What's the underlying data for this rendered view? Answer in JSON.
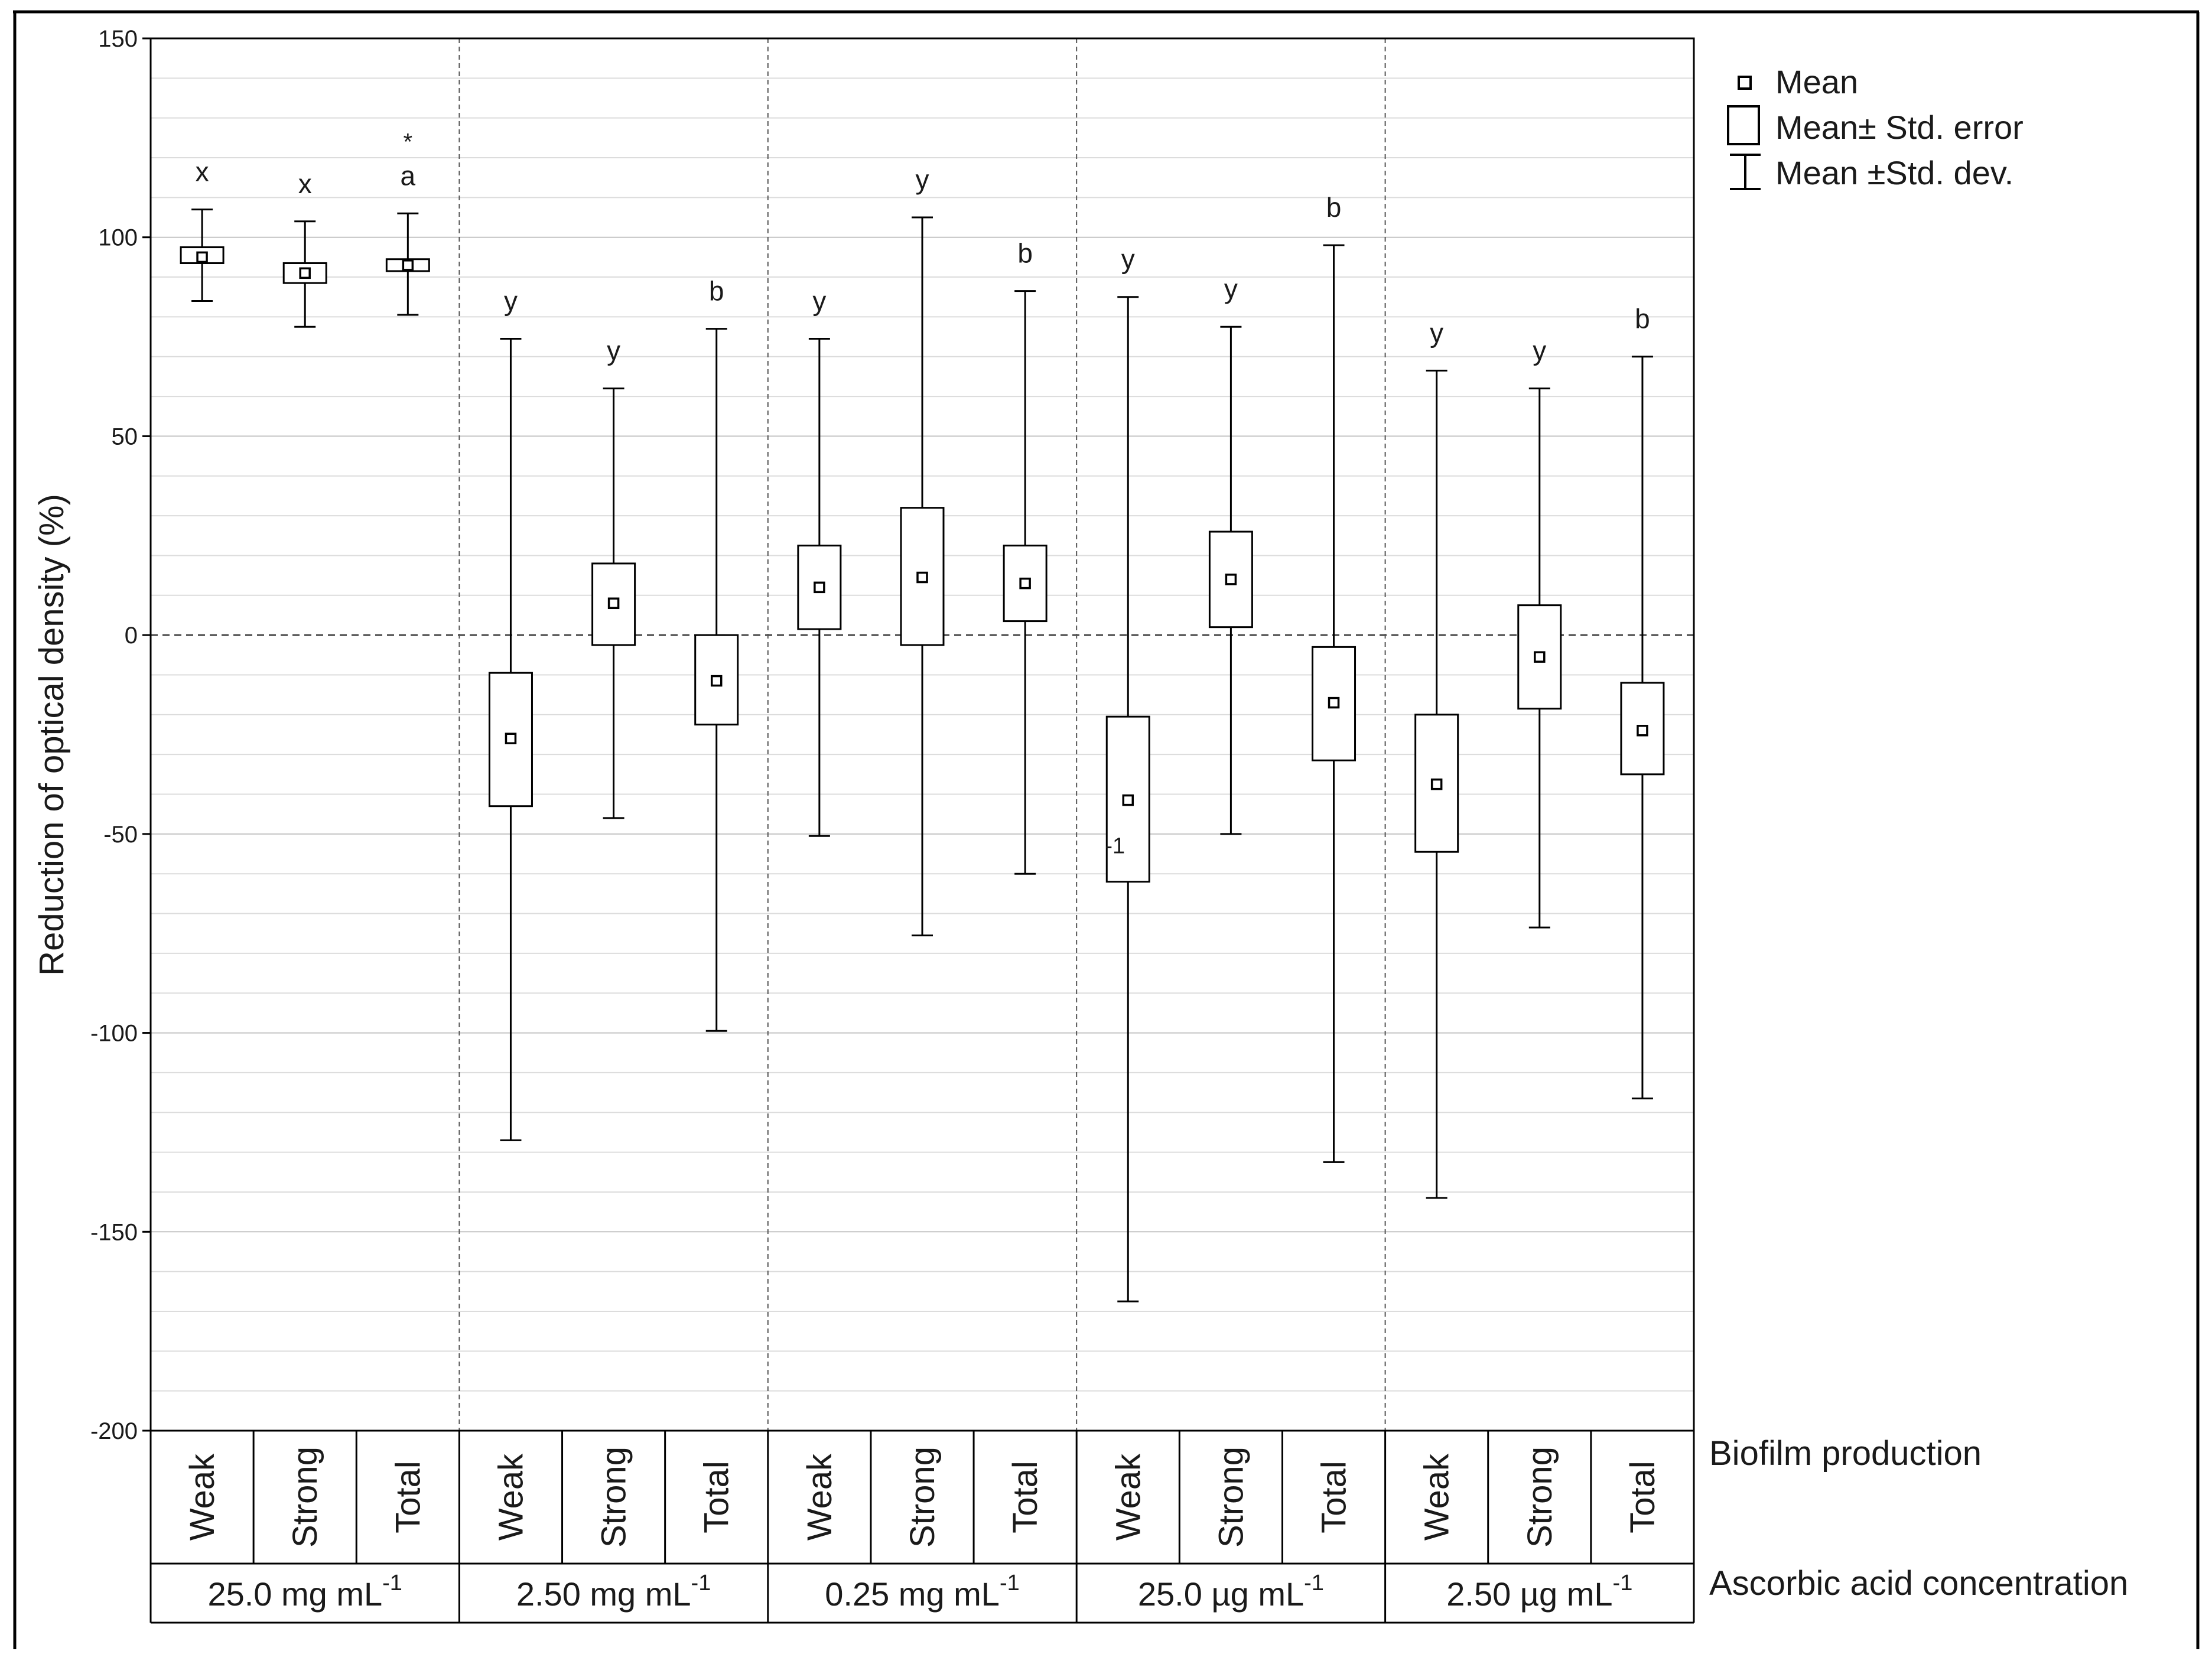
{
  "chart_data": {
    "type": "box",
    "ylabel": "Reduction of optical density (%)",
    "ylim": [
      -200,
      150
    ],
    "y_ticks": [
      "150",
      "100",
      "50",
      "0",
      "-50",
      "-100",
      "-150",
      "-200"
    ],
    "grid": "horizontal",
    "reference_line_y": 0,
    "legend": {
      "position": "right",
      "items": [
        "Mean",
        "Mean± Std. error",
        "Mean ±Std. dev."
      ]
    },
    "row_labels": {
      "biofilm": "Biofilm production",
      "concentration": "Ascorbic acid concentration"
    },
    "subcategories": [
      "Weak",
      "Strong",
      "Total"
    ],
    "groups": [
      {
        "label": "25.0 mg mL",
        "label_sup": "-1",
        "boxes": [
          {
            "category": "Weak",
            "mean": 95.0,
            "se_low": 93.5,
            "se_high": 97.5,
            "sd_low": 84.0,
            "sd_high": 107.0,
            "letter": "x",
            "star": ""
          },
          {
            "category": "Strong",
            "mean": 91.0,
            "se_low": 88.5,
            "se_high": 93.5,
            "sd_low": 77.5,
            "sd_high": 104.0,
            "letter": "x",
            "star": ""
          },
          {
            "category": "Total",
            "mean": 93.0,
            "se_low": 91.5,
            "se_high": 94.5,
            "sd_low": 80.5,
            "sd_high": 106.0,
            "letter": "a",
            "star": "*"
          }
        ]
      },
      {
        "label": "2.50 mg mL",
        "label_sup": "-1",
        "boxes": [
          {
            "category": "Weak",
            "mean": -26.0,
            "se_low": -43.0,
            "se_high": -9.5,
            "sd_low": -127.0,
            "sd_high": 74.5,
            "letter": "y",
            "star": ""
          },
          {
            "category": "Strong",
            "mean": 8.0,
            "se_low": -2.5,
            "se_high": 18.0,
            "sd_low": -46.0,
            "sd_high": 62.0,
            "letter": "y",
            "star": ""
          },
          {
            "category": "Total",
            "mean": -11.5,
            "se_low": -22.5,
            "se_high": 0.0,
            "sd_low": -99.5,
            "sd_high": 77.0,
            "letter": "b",
            "star": ""
          }
        ]
      },
      {
        "label": "0.25 mg mL",
        "label_sup": "-1",
        "boxes": [
          {
            "category": "Weak",
            "mean": 12.0,
            "se_low": 1.5,
            "se_high": 22.5,
            "sd_low": -50.5,
            "sd_high": 74.5,
            "letter": "y",
            "star": ""
          },
          {
            "category": "Strong",
            "mean": 14.5,
            "se_low": -2.5,
            "se_high": 32.0,
            "sd_low": -75.5,
            "sd_high": 105.0,
            "letter": "y",
            "star": ""
          },
          {
            "category": "Total",
            "mean": 13.0,
            "se_low": 3.5,
            "se_high": 22.5,
            "sd_low": -60.0,
            "sd_high": 86.5,
            "letter": "b",
            "star": ""
          }
        ]
      },
      {
        "label": "25.0 µg mL",
        "label_sup": "-1",
        "boxes": [
          {
            "category": "Weak",
            "mean": -41.5,
            "se_low": -62.0,
            "se_high": -20.5,
            "sd_low": -167.5,
            "sd_high": 85.0,
            "letter": "y",
            "star": "",
            "note": "-1"
          },
          {
            "category": "Strong",
            "mean": 14.0,
            "se_low": 2.0,
            "se_high": 26.0,
            "sd_low": -50.0,
            "sd_high": 77.5,
            "letter": "y",
            "star": ""
          },
          {
            "category": "Total",
            "mean": -17.0,
            "se_low": -31.5,
            "se_high": -3.0,
            "sd_low": -132.5,
            "sd_high": 98.0,
            "letter": "b",
            "star": ""
          }
        ]
      },
      {
        "label": "2.50 µg mL",
        "label_sup": "-1",
        "boxes": [
          {
            "category": "Weak",
            "mean": -37.5,
            "se_low": -54.5,
            "se_high": -20.0,
            "sd_low": -141.5,
            "sd_high": 66.5,
            "letter": "y",
            "star": ""
          },
          {
            "category": "Strong",
            "mean": -5.5,
            "se_low": -18.5,
            "se_high": 7.5,
            "sd_low": -73.5,
            "sd_high": 62.0,
            "letter": "y",
            "star": ""
          },
          {
            "category": "Total",
            "mean": -24.0,
            "se_low": -35.0,
            "se_high": -12.0,
            "sd_low": -116.5,
            "sd_high": 70.0,
            "letter": "b",
            "star": ""
          }
        ]
      }
    ]
  }
}
